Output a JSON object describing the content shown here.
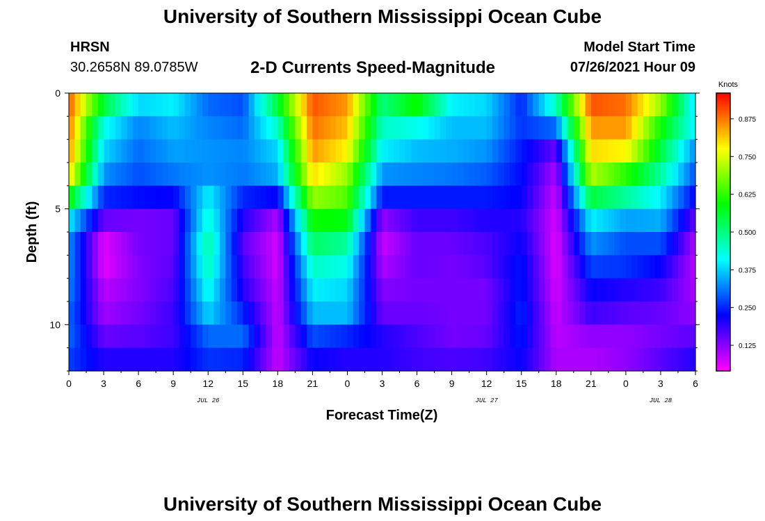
{
  "header": {
    "title_top": "University of Southern Mississippi Ocean Cube",
    "station": "HRSN",
    "coords": "30.2658N  89.0785W",
    "subtitle": "2-D Currents Speed-Magnitude",
    "model_start_label": "Model Start Time",
    "model_start_value": "07/26/2021 Hour 09",
    "title_bottom": "University of Southern Mississippi Ocean Cube"
  },
  "chart_data": {
    "type": "heatmap",
    "title": "2-D Currents Speed-Magnitude",
    "xlabel": "Forecast Time(Z)",
    "ylabel": "Depth (ft)",
    "x_tick_labels": [
      "0",
      "3",
      "6",
      "9",
      "12",
      "15",
      "18",
      "21",
      "0",
      "3",
      "6",
      "9",
      "12",
      "15",
      "18",
      "21",
      "0",
      "3",
      "6"
    ],
    "x_range_hours": [
      0,
      54
    ],
    "date_labels": [
      {
        "text": "JUL 26",
        "hour": 12
      },
      {
        "text": "JUL 27",
        "hour": 36
      },
      {
        "text": "JUL 28",
        "hour": 51
      }
    ],
    "y_tick_labels": [
      "0",
      "5",
      "10"
    ],
    "y_range_ft": [
      0,
      12
    ],
    "colorbar": {
      "title": "Knots",
      "ticks": [
        "0.875",
        "0.750",
        "0.625",
        "0.500",
        "0.375",
        "0.250",
        "0.125"
      ],
      "tick_values": [
        0.875,
        0.75,
        0.625,
        0.5,
        0.375,
        0.25,
        0.125
      ],
      "range": [
        0.04,
        0.96
      ],
      "colors": [
        "#ff00ff",
        "#8000ff",
        "#0000ff",
        "#0080ff",
        "#00ffff",
        "#00ff80",
        "#00ff00",
        "#80ff00",
        "#ffff00",
        "#ff8000",
        "#ff0000"
      ]
    },
    "depth_layers_ft": [
      0.5,
      1.5,
      2.5,
      3.5,
      4.5,
      5.5,
      6.5,
      7.5,
      8.5,
      9.5,
      10.5,
      11.5
    ],
    "time_steps_hours": [
      0,
      3,
      6,
      9,
      12,
      15,
      18,
      21,
      24,
      27,
      30,
      33,
      36,
      39,
      42,
      45,
      48,
      51,
      54
    ],
    "values_knots": [
      [
        0.9,
        0.55,
        0.38,
        0.4,
        0.3,
        0.28,
        0.55,
        0.9,
        0.85,
        0.5,
        0.6,
        0.4,
        0.38,
        0.25,
        0.45,
        0.9,
        0.88,
        0.7,
        0.38
      ],
      [
        0.88,
        0.42,
        0.32,
        0.36,
        0.32,
        0.3,
        0.45,
        0.88,
        0.82,
        0.45,
        0.42,
        0.36,
        0.36,
        0.26,
        0.3,
        0.85,
        0.85,
        0.6,
        0.4
      ],
      [
        0.86,
        0.38,
        0.3,
        0.34,
        0.33,
        0.32,
        0.38,
        0.85,
        0.78,
        0.4,
        0.36,
        0.35,
        0.33,
        0.24,
        0.15,
        0.8,
        0.78,
        0.55,
        0.32
      ],
      [
        0.8,
        0.33,
        0.28,
        0.31,
        0.33,
        0.31,
        0.35,
        0.8,
        0.7,
        0.33,
        0.32,
        0.31,
        0.29,
        0.23,
        0.1,
        0.72,
        0.62,
        0.48,
        0.28
      ],
      [
        0.6,
        0.25,
        0.23,
        0.22,
        0.4,
        0.25,
        0.22,
        0.7,
        0.65,
        0.24,
        0.24,
        0.24,
        0.24,
        0.22,
        0.08,
        0.55,
        0.48,
        0.4,
        0.22
      ],
      [
        0.4,
        0.15,
        0.14,
        0.15,
        0.44,
        0.2,
        0.1,
        0.6,
        0.58,
        0.12,
        0.18,
        0.18,
        0.2,
        0.2,
        0.07,
        0.4,
        0.34,
        0.35,
        0.15
      ],
      [
        0.33,
        0.06,
        0.14,
        0.15,
        0.48,
        0.16,
        0.07,
        0.52,
        0.48,
        0.08,
        0.15,
        0.15,
        0.17,
        0.22,
        0.06,
        0.33,
        0.28,
        0.28,
        0.1
      ],
      [
        0.33,
        0.06,
        0.13,
        0.16,
        0.46,
        0.18,
        0.07,
        0.45,
        0.42,
        0.1,
        0.15,
        0.14,
        0.16,
        0.24,
        0.06,
        0.27,
        0.26,
        0.22,
        0.09
      ],
      [
        0.32,
        0.09,
        0.13,
        0.17,
        0.42,
        0.2,
        0.08,
        0.4,
        0.38,
        0.13,
        0.14,
        0.14,
        0.14,
        0.24,
        0.07,
        0.22,
        0.2,
        0.18,
        0.1
      ],
      [
        0.3,
        0.11,
        0.14,
        0.18,
        0.38,
        0.25,
        0.08,
        0.36,
        0.36,
        0.15,
        0.15,
        0.14,
        0.14,
        0.25,
        0.08,
        0.18,
        0.16,
        0.15,
        0.12
      ],
      [
        0.3,
        0.15,
        0.16,
        0.18,
        0.3,
        0.3,
        0.08,
        0.28,
        0.25,
        0.2,
        0.17,
        0.14,
        0.15,
        0.24,
        0.09,
        0.12,
        0.12,
        0.14,
        0.16
      ],
      [
        0.27,
        0.2,
        0.2,
        0.2,
        0.26,
        0.25,
        0.08,
        0.22,
        0.2,
        0.2,
        0.18,
        0.17,
        0.18,
        0.22,
        0.1,
        0.1,
        0.12,
        0.16,
        0.2
      ]
    ]
  }
}
